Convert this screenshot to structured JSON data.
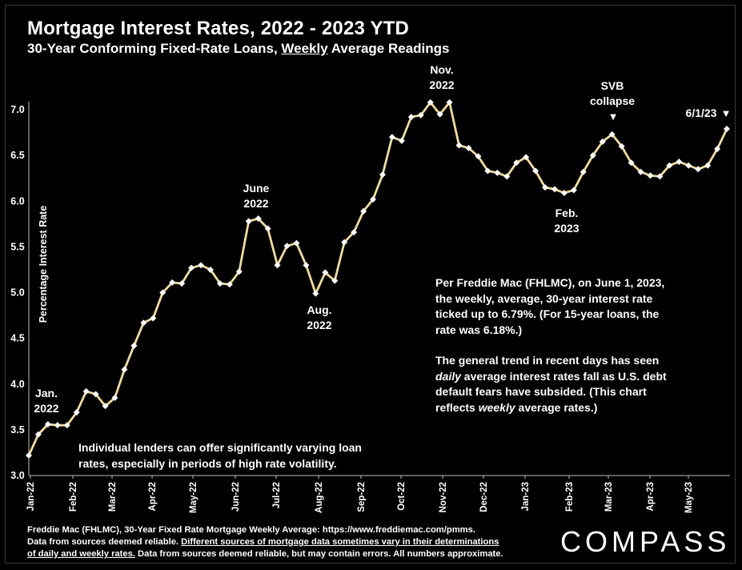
{
  "header": {
    "title": "Mortgage Interest Rates, 2022 - 2023 YTD",
    "subtitle_pre": "30-Year Conforming Fixed-Rate Loans, ",
    "subtitle_underlined": "Weekly",
    "subtitle_post": " Average Readings"
  },
  "chart_data": {
    "type": "line",
    "title": "Mortgage Interest Rates, 2022 - 2023 YTD",
    "ylabel": "Percentage Interest Rate",
    "xlabel": "",
    "ylim": [
      3.0,
      7.0
    ],
    "yticks": [
      "3.0",
      "3.5",
      "4.0",
      "4.5",
      "5.0",
      "5.5",
      "6.0",
      "6.5",
      "7.0"
    ],
    "xtick_labels": [
      "Jan-22",
      "Feb-22",
      "Mar-22",
      "Apr-22",
      "May-22",
      "Jun-22",
      "Jul-22",
      "Aug-22",
      "Sep-22",
      "Oct-22",
      "Nov-22",
      "Dec-22",
      "Jan-23",
      "Feb-23",
      "Mar-23",
      "Apr-23",
      "May-23"
    ],
    "series": [
      {
        "name": "30-Year Fixed Rate Weekly Average",
        "color": "#f1dc9a",
        "values": [
          3.22,
          3.45,
          3.56,
          3.55,
          3.55,
          3.69,
          3.92,
          3.89,
          3.76,
          3.85,
          4.16,
          4.42,
          4.67,
          4.72,
          5.0,
          5.11,
          5.1,
          5.27,
          5.3,
          5.25,
          5.1,
          5.09,
          5.23,
          5.78,
          5.81,
          5.7,
          5.3,
          5.51,
          5.54,
          5.3,
          4.99,
          5.22,
          5.13,
          5.55,
          5.66,
          5.89,
          6.02,
          6.29,
          6.7,
          6.66,
          6.92,
          6.94,
          7.08,
          6.95,
          7.08,
          6.61,
          6.58,
          6.49,
          6.33,
          6.31,
          6.27,
          6.42,
          6.48,
          6.33,
          6.15,
          6.13,
          6.09,
          6.12,
          6.32,
          6.5,
          6.65,
          6.73,
          6.6,
          6.42,
          6.32,
          6.28,
          6.27,
          6.39,
          6.43,
          6.39,
          6.35,
          6.39,
          6.57,
          6.79
        ]
      }
    ]
  },
  "annotations": {
    "jan": [
      "Jan.",
      "2022"
    ],
    "june": [
      "June",
      "2022"
    ],
    "aug": [
      "Aug.",
      "2022"
    ],
    "nov": [
      "Nov.",
      "2022"
    ],
    "feb": [
      "Feb.",
      "2023"
    ],
    "svb": [
      "SVB",
      "collapse"
    ],
    "last": "6/1/23",
    "arrow": "▼"
  },
  "notes": {
    "lenders": [
      "Individual lenders can offer significantly varying loan",
      "rates, especially in periods of high rate volatility."
    ],
    "freddie": [
      "Per Freddie Mac (FHLMC), on June 1, 2023,",
      "the weekly, average, 30-year interest rate",
      "ticked up to 6.79%. (For 15-year loans, the",
      "rate was 6.18%.)"
    ],
    "trend_1": "The general trend in recent days has seen",
    "trend_2_em": "daily",
    "trend_2_rest": " average interest rates fall as U.S. debt",
    "trend_3": "default fears have subsided. (This chart",
    "trend_4_pre": "reflects ",
    "trend_4_em": "weekly",
    "trend_4_post": " average rates.)"
  },
  "footer": {
    "line1": "Freddie Mac (FHLMC), 30-Year Fixed Rate Mortgage Weekly Average:  https://www.freddiemac.com/pmms.",
    "line2_pre": "Data from sources deemed reliable. ",
    "line2_u": "Different sources of mortgage data sometimes vary in their determinations",
    "line3_u": "of daily and weekly rates.",
    "line3_post": " Data from sources deemed reliable, but may contain errors. All numbers approximate."
  },
  "brand": "COMPASS"
}
